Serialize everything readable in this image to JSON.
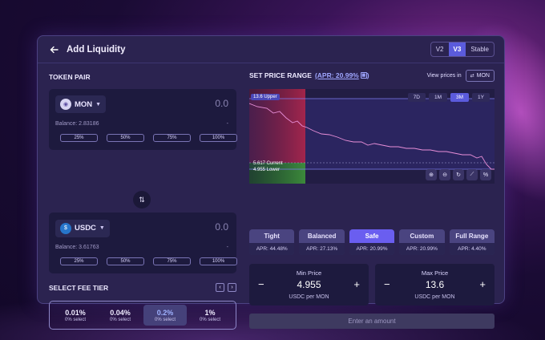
{
  "header": {
    "title": "Add Liquidity",
    "versions": [
      "V2",
      "V3",
      "Stable"
    ],
    "active_version": "V3"
  },
  "token_pair": {
    "label": "TOKEN PAIR",
    "token_a": {
      "symbol": "MON",
      "amount": "0.0",
      "balance": "Balance: 2.83186",
      "dash": "-"
    },
    "token_b": {
      "symbol": "USDC",
      "amount": "0.0",
      "balance": "Balance: 3.61763",
      "dash": "-"
    },
    "pct_buttons": [
      "25%",
      "50%",
      "75%",
      "100%"
    ]
  },
  "fee_tier": {
    "label": "SELECT FEE TIER",
    "options": [
      {
        "value": "0.01%",
        "sub": "0% select"
      },
      {
        "value": "0.04%",
        "sub": "0% select"
      },
      {
        "value": "0.2%",
        "sub": "0% select",
        "active": true
      },
      {
        "value": "1%",
        "sub": "0% select"
      }
    ]
  },
  "price_range": {
    "label": "SET PRICE RANGE",
    "apr_link": "(APR: 20.99%",
    "view_prices_label": "View prices in",
    "view_prices_token": "MON",
    "timeframes": [
      "7D",
      "1M",
      "3M",
      "1Y"
    ],
    "active_timeframe": "3M",
    "upper_label": "13.6 Upper",
    "current_label": "5.617 Current",
    "lower_label": "4.955 Lower",
    "colors": {
      "accent": "#5b5bdc",
      "red_zone": "#8a1c3f",
      "green_zone": "#2f7a32",
      "line": "#e88fd8"
    }
  },
  "strategies": [
    {
      "name": "Tight",
      "apr": "APR: 44.48%"
    },
    {
      "name": "Balanced",
      "apr": "APR: 27.13%"
    },
    {
      "name": "Safe",
      "apr": "APR: 20.99%",
      "active": true
    },
    {
      "name": "Custom",
      "apr": "APR: 20.99%"
    },
    {
      "name": "Full Range",
      "apr": "APR: 4.40%"
    }
  ],
  "min_price": {
    "label": "Min Price",
    "value": "4.955",
    "unit": "USDC per MON",
    "minus": "−",
    "plus": "+"
  },
  "max_price": {
    "label": "Max Price",
    "value": "13.6",
    "unit": "USDC per MON",
    "minus": "−",
    "plus": "+"
  },
  "cta": "Enter an amount"
}
